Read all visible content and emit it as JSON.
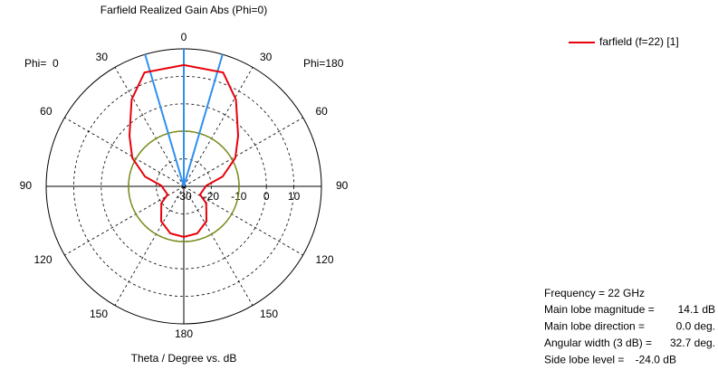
{
  "chart_data": {
    "type": "polar",
    "title": "Farfield Realized Gain Abs (Phi=0)",
    "axis_label": "Theta / Degree vs. dB",
    "phi_labels": [
      "Phi=  0",
      "Phi=180"
    ],
    "x": [
      -180,
      -164,
      -147,
      -127,
      -117,
      -88,
      -76,
      -61,
      -47,
      -31,
      -19,
      0,
      19,
      31,
      47,
      61,
      76,
      88,
      117,
      127,
      147,
      164,
      180
    ],
    "series": [
      {
        "name": "farfield (f=22) [1]",
        "color": "#e8000b",
        "values": [
          -11.6,
          -12.2,
          -14.9,
          -19.8,
          -23.4,
          -21.8,
          -15.5,
          -8.6,
          -3.0,
          6.8,
          13.8,
          14.1,
          13.8,
          6.8,
          -3.0,
          -8.6,
          -15.5,
          -21.8,
          -23.4,
          -19.8,
          -14.9,
          -12.2,
          -11.6
        ]
      }
    ],
    "rlim": [
      -30,
      20
    ],
    "rticks": [
      -30,
      -20,
      -10,
      0,
      10
    ],
    "thetaticks": [
      0,
      30,
      60,
      90,
      120,
      150,
      180,
      {
        "value": -30,
        "label": "30"
      },
      {
        "value": -60,
        "label": "60"
      },
      {
        "value": -90,
        "label": "90"
      },
      {
        "value": -120,
        "label": "120"
      },
      {
        "value": -150,
        "label": "150"
      }
    ],
    "beam_color": "#2f8fef",
    "side_lobe_color": "#7a8c1c",
    "info": {
      "frequency": "Frequency = 22 GHz",
      "rows": [
        {
          "label": "Main lobe magnitude =",
          "value": 14.1,
          "value_label": "14.1 dB"
        },
        {
          "label": "Main lobe direction =",
          "value": 0.0,
          "value_label": "0.0 deg."
        },
        {
          "label": "Angular width (3 dB) =",
          "value": 32.7,
          "value_label": "32.7 deg."
        },
        {
          "label": "Side lobe level =",
          "value": -24.0,
          "value_label": "-24.0 dB"
        }
      ]
    }
  }
}
